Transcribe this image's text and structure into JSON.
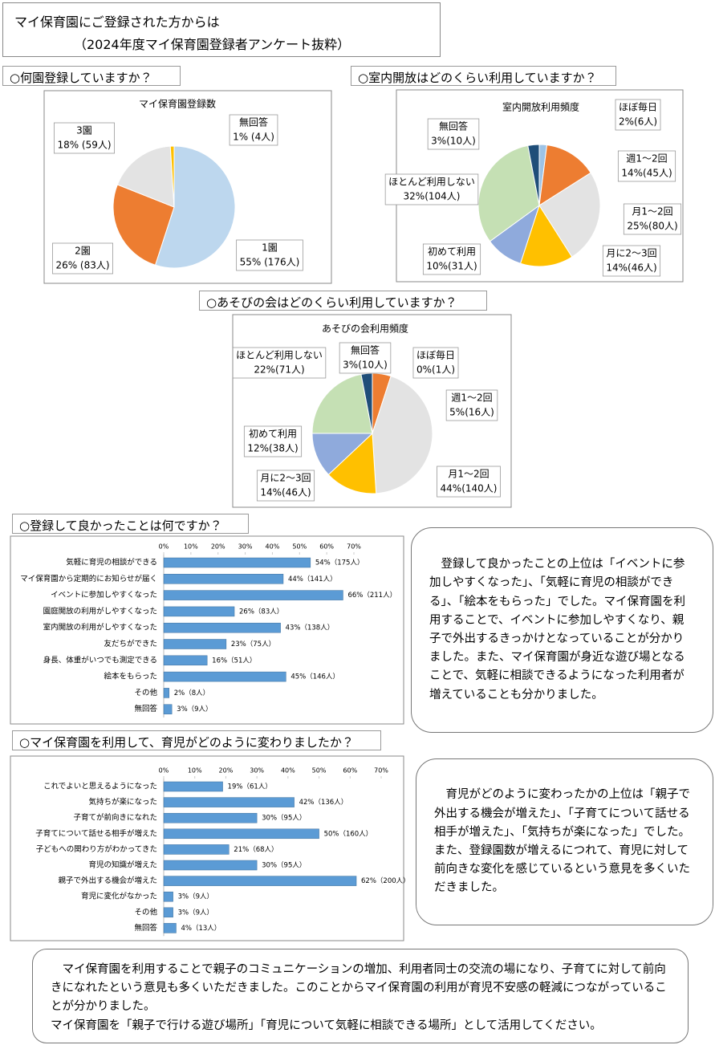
{
  "header": {
    "title": "マイ保育園にご登録された方からは",
    "subtitle": "（2024年度マイ保育園登録者アンケート抜粋）"
  },
  "chart_data": [
    {
      "type": "pie",
      "heading": "○何園登録していますか？",
      "title": "マイ保育園登録数",
      "categories": [
        "1園",
        "2園",
        "3園",
        "無回答"
      ],
      "values": [
        55,
        26,
        18,
        1
      ],
      "value_labels": [
        "55% (176人)",
        "26% (83人)",
        "18% (59人)",
        "1% (4人)"
      ],
      "colors": [
        "#bdd7ee",
        "#ed7d31",
        "#e3e3e3",
        "#ffc000"
      ]
    },
    {
      "type": "pie",
      "heading": "○室内開放はどのくらい利用していますか？",
      "title": "室内開放利用頻度",
      "categories": [
        "ほぼ毎日",
        "週1～2回",
        "月1～2回",
        "月に2～3回",
        "初めて利用",
        "ほとんど利用しない",
        "無回答"
      ],
      "values": [
        2,
        14,
        25,
        14,
        10,
        32,
        3
      ],
      "value_labels": [
        "2%(6人)",
        "14%(45人)",
        "25%(80人)",
        "14%(46人)",
        "10%(31人)",
        "32%(104人)",
        "3%(10人)"
      ],
      "colors": [
        "#9dc3e6",
        "#ed7d31",
        "#e3e3e3",
        "#ffc000",
        "#8faadc",
        "#c5e0b4",
        "#1f4e79"
      ]
    },
    {
      "type": "pie",
      "heading": "○あそびの会はどのくらい利用していますか？",
      "title": "あそびの会利用頻度",
      "categories": [
        "ほぼ毎日",
        "週1～2回",
        "月1～2回",
        "月に2～3回",
        "初めて利用",
        "ほとんど利用しない",
        "無回答"
      ],
      "values": [
        0,
        5,
        44,
        14,
        12,
        22,
        3
      ],
      "value_labels": [
        "0%(1人)",
        "5%(16人)",
        "44%(140人)",
        "14%(46人)",
        "12%(38人)",
        "22%(71人)",
        "3%(10人)"
      ],
      "colors": [
        "#9dc3e6",
        "#ed7d31",
        "#e3e3e3",
        "#ffc000",
        "#8faadc",
        "#c5e0b4",
        "#1f4e79"
      ]
    },
    {
      "type": "bar",
      "heading": "○登録して良かったことは何ですか？",
      "orientation": "horizontal",
      "color": "#5b9bd5",
      "categories": [
        "気軽に育児の相談ができる",
        "マイ保育園から定期的にお知らせが届く",
        "イベントに参加しやすくなった",
        "園庭開放の利用がしやすくなった",
        "室内開放の利用がしやすくなった",
        "友だちができた",
        "身長、体重がいつでも測定できる",
        "絵本をもらった",
        "その他",
        "無回答"
      ],
      "values": [
        54,
        44,
        66,
        26,
        43,
        23,
        16,
        45,
        2,
        3
      ],
      "value_labels": [
        "54%（175人）",
        "44%（141人）",
        "66%（211人）",
        "26%（83人）",
        "43%（138人）",
        "23%（75人）",
        "16%（51人）",
        "45%（146人）",
        "2%（8人）",
        "3%（9人）"
      ],
      "xlim": [
        0,
        70
      ],
      "xticks": [
        {
          "value": 0,
          "label": "0%"
        },
        {
          "value": 10,
          "label": "10%"
        },
        {
          "value": 20,
          "label": "20%"
        },
        {
          "value": 30,
          "label": "30%"
        },
        {
          "value": 40,
          "label": "40%"
        },
        {
          "value": 50,
          "label": "50%"
        },
        {
          "value": 60,
          "label": "60%"
        },
        {
          "value": 70,
          "label": "70%"
        }
      ]
    },
    {
      "type": "bar",
      "heading": "○マイ保育園を利用して、育児がどのように変わりましたか？",
      "orientation": "horizontal",
      "color": "#5b9bd5",
      "categories": [
        "これでよいと思えるようになった",
        "気持ちが楽になった",
        "子育てが前向きになれた",
        "子育てについて話せる相手が増えた",
        "子どもへの関わり方がわかってきた",
        "育児の知識が増えた",
        "親子で外出する機会が増えた",
        "育児に変化がなかった",
        "その他",
        "無回答"
      ],
      "values": [
        19,
        42,
        30,
        50,
        21,
        30,
        62,
        3,
        3,
        4
      ],
      "value_labels": [
        "19%（61人）",
        "42%（136人）",
        "30%（95人）",
        "50%（160人）",
        "21%（68人）",
        "30%（95人）",
        "62%（200人）",
        "3%（9人）",
        "3%（9人）",
        "4%（13人）"
      ],
      "xlim": [
        0,
        70
      ],
      "xticks": [
        {
          "value": 0,
          "label": "0%"
        },
        {
          "value": 10,
          "label": "10%"
        },
        {
          "value": 20,
          "label": "20%"
        },
        {
          "value": 30,
          "label": "30%"
        },
        {
          "value": 40,
          "label": "40%"
        },
        {
          "value": 50,
          "label": "50%"
        },
        {
          "value": 60,
          "label": "60%"
        },
        {
          "value": 70,
          "label": "70%"
        }
      ]
    }
  ],
  "notes": [
    "登録して良かったことの上位は「イベントに参加しやすくなった」、「気軽に育児の相談ができる」、「絵本をもらった」でした。マイ保育園を利用することで、イベントに参加しやすくなり、親子で外出するきっかけとなっていることが分かりました。また、マイ保育園が身近な遊び場となることで、気軽に相談できるようになった利用者が増えていることも分かりました。",
    "育児がどのように変わったかの上位は「親子で外出する機会が増えた」、「子育てについて話せる相手が増えた」、「気持ちが楽になった」でした。また、登録園数が増えるにつれて、育児に対して前向きな変化を感じているという意見を多くいただきました。"
  ],
  "footer": {
    "paragraphs": [
      "マイ保育園を利用することで親子のコミュニケーションの増加、利用者同士の交流の場になり、子育てに対して前向きになれたという意見も多くいただきました。このことからマイ保育園の利用が育児不安感の軽減につながっていることが分かりました。",
      "マイ保育園を「親子で行ける遊び場所」「育児について気軽に相談できる場所」として活用してください。"
    ]
  }
}
